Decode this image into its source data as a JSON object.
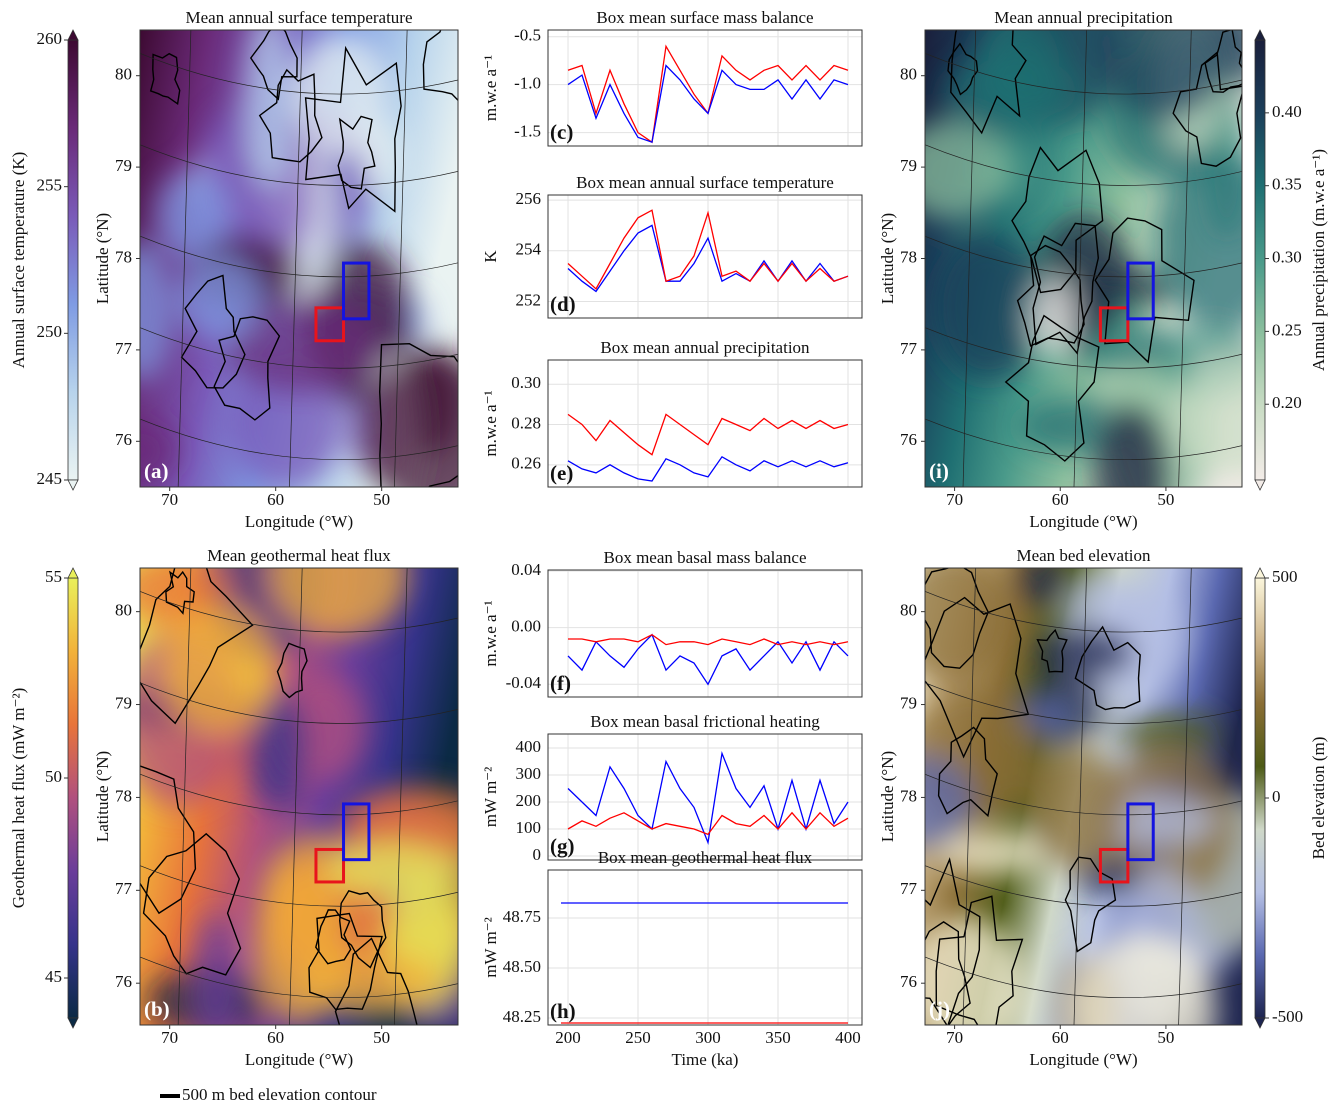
{
  "chart_data": [
    {
      "type": "map",
      "title": "Mean annual surface temperature",
      "panel_label": "(a)",
      "xlabel": "Longitude (°W)",
      "ylabel": "Latitude (°N)",
      "xlim": [
        72.8,
        42.8
      ],
      "xticks": [
        70,
        60,
        50
      ],
      "ylim": [
        75.5,
        80.5
      ],
      "yticks": [
        76,
        77,
        78,
        79,
        80
      ],
      "colorbar_label": "Annual surface temperature (K)",
      "clim": [
        245,
        260
      ],
      "cticks": [
        245,
        250,
        255,
        260
      ],
      "colormap": [
        "#eaf3f2",
        "#b7d3ec",
        "#7f9be3",
        "#7a5ab8",
        "#6a2a78",
        "#3d0a32"
      ],
      "boxes": [
        {
          "color": "#e8141c",
          "lon": [
            56.2,
            53.6
          ],
          "lat": [
            77.1,
            77.46
          ]
        },
        {
          "color": "#1414e0",
          "lon": [
            53.6,
            51.2
          ],
          "lat": [
            77.34,
            77.95
          ]
        }
      ]
    },
    {
      "type": "map",
      "title": "Mean geothermal heat flux",
      "panel_label": "(b)",
      "xlabel": "Longitude (°W)",
      "ylabel": "Latitude (°N)",
      "xlim": [
        72.8,
        42.8
      ],
      "xticks": [
        70,
        60,
        50
      ],
      "ylim": [
        75.55,
        80.47
      ],
      "yticks": [
        76,
        77,
        78,
        79,
        80
      ],
      "colorbar_label": "Geothermal heat flux (mW m⁻²)",
      "clim": [
        44,
        55
      ],
      "cticks": [
        45,
        50,
        55
      ],
      "colormap": [
        "#0b2a45",
        "#35338a",
        "#6a3d9a",
        "#b0507e",
        "#e8743a",
        "#f2b23a",
        "#e9f05a"
      ],
      "boxes": [
        {
          "color": "#e8141c",
          "lon": [
            56.2,
            53.6
          ],
          "lat": [
            77.09,
            77.44
          ]
        },
        {
          "color": "#1414e0",
          "lon": [
            53.6,
            51.2
          ],
          "lat": [
            77.33,
            77.93
          ]
        }
      ]
    },
    {
      "type": "map",
      "title": "Mean annual precipitation",
      "panel_label": "(i)",
      "xlabel": "Longitude (°W)",
      "ylabel": "Latitude (°N)",
      "xlim": [
        72.8,
        42.8
      ],
      "xticks": [
        70,
        60,
        50
      ],
      "ylim": [
        75.5,
        80.5
      ],
      "yticks": [
        76,
        77,
        78,
        79,
        80
      ],
      "colorbar_label": "Annual precipitation (m.w.e a⁻¹)",
      "clim": [
        0.148,
        0.45
      ],
      "cticks": [
        {
          "value": 0.2,
          "label": "0.20"
        },
        0.25,
        {
          "value": 0.3,
          "label": "0.30"
        },
        0.35,
        {
          "value": 0.4,
          "label": "0.40"
        }
      ],
      "colormap": [
        "#f3ece8",
        "#c9dcc4",
        "#8cbf9e",
        "#4a9a8a",
        "#1f6f72",
        "#1b3f5a",
        "#1a1f3c"
      ],
      "boxes": [
        {
          "color": "#e8141c",
          "lon": [
            56.2,
            53.6
          ],
          "lat": [
            77.1,
            77.46
          ]
        },
        {
          "color": "#1414e0",
          "lon": [
            53.6,
            51.2
          ],
          "lat": [
            77.34,
            77.95
          ]
        }
      ]
    },
    {
      "type": "map",
      "title": "Mean bed elevation",
      "panel_label": "(j)",
      "xlabel": "Longitude (°W)",
      "ylabel": "Latitude (°N)",
      "xlim": [
        72.8,
        42.8
      ],
      "xticks": [
        70,
        60,
        50
      ],
      "ylim": [
        75.55,
        80.47
      ],
      "yticks": [
        76,
        77,
        78,
        79,
        80
      ],
      "colorbar_label": "Bed elevation (m)",
      "clim": [
        -500,
        500
      ],
      "cticks": [
        -500,
        0,
        500
      ],
      "colormap": [
        "#1e2550",
        "#5a68b0",
        "#b4bfe4",
        "#cfd8c8",
        "#4d5a16",
        "#8a6e35",
        "#cdb48a",
        "#fbf6dc"
      ],
      "boxes": [
        {
          "color": "#e8141c",
          "lon": [
            56.2,
            53.6
          ],
          "lat": [
            77.09,
            77.44
          ]
        },
        {
          "color": "#1414e0",
          "lon": [
            53.6,
            51.2
          ],
          "lat": [
            77.33,
            77.93
          ]
        }
      ]
    },
    {
      "type": "line",
      "title": "Box mean surface mass balance",
      "panel_label": "(c)",
      "ylabel": "m.w.e a⁻¹",
      "show_xtick_labels": false,
      "x": [
        200,
        210,
        220,
        230,
        240,
        250,
        260,
        270,
        280,
        290,
        300,
        310,
        320,
        330,
        340,
        350,
        360,
        370,
        380,
        390,
        400
      ],
      "xlim": [
        185.7,
        410
      ],
      "xticks": [
        200,
        250,
        300,
        350,
        400
      ],
      "ylim": [
        -1.64,
        -0.43
      ],
      "yticks": [
        -1.5,
        {
          "value": -1.0,
          "label": "-1.0"
        },
        -0.5
      ],
      "series": [
        {
          "color": "#ff0000",
          "values": [
            -0.85,
            -0.8,
            -1.3,
            -0.85,
            -1.2,
            -1.5,
            -1.6,
            -0.6,
            -0.85,
            -1.1,
            -1.3,
            -0.7,
            -0.85,
            -0.95,
            -0.85,
            -0.8,
            -0.95,
            -0.8,
            -0.95,
            -0.8,
            -0.85
          ]
        },
        {
          "color": "#0000ff",
          "values": [
            -1.0,
            -0.9,
            -1.35,
            -1.0,
            -1.3,
            -1.55,
            -1.6,
            -0.8,
            -0.95,
            -1.15,
            -1.3,
            -0.85,
            -1.0,
            -1.05,
            -1.05,
            -0.95,
            -1.15,
            -0.95,
            -1.15,
            -0.95,
            -1.0
          ]
        }
      ]
    },
    {
      "type": "line",
      "title": "Box mean annual surface temperature",
      "panel_label": "(d)",
      "ylabel": "K",
      "show_xtick_labels": false,
      "x": [
        200,
        210,
        220,
        230,
        240,
        250,
        260,
        270,
        280,
        290,
        300,
        310,
        320,
        330,
        340,
        350,
        360,
        370,
        380,
        390,
        400
      ],
      "xlim": [
        185.7,
        410
      ],
      "xticks": [
        200,
        250,
        300,
        350,
        400
      ],
      "ylim": [
        251.35,
        256.2
      ],
      "yticks": [
        252,
        254,
        256
      ],
      "series": [
        {
          "color": "#0000ff",
          "values": [
            253.3,
            252.8,
            252.4,
            253.2,
            254,
            254.7,
            255,
            252.8,
            252.8,
            253.5,
            254.5,
            252.8,
            253.1,
            252.8,
            253.6,
            252.8,
            253.6,
            252.8,
            253.5,
            252.8,
            253
          ]
        },
        {
          "color": "#ff0000",
          "values": [
            253.5,
            253,
            252.5,
            253.5,
            254.5,
            255.3,
            255.6,
            252.8,
            253,
            253.8,
            255.5,
            253,
            253.2,
            252.8,
            253.5,
            252.8,
            253.5,
            252.8,
            253.3,
            252.8,
            253
          ]
        }
      ]
    },
    {
      "type": "line",
      "title": "Box mean annual precipitation",
      "panel_label": "(e)",
      "ylabel": "m.w.e a⁻¹",
      "show_xtick_labels": false,
      "x": [
        200,
        210,
        220,
        230,
        240,
        250,
        260,
        270,
        280,
        290,
        300,
        310,
        320,
        330,
        340,
        350,
        360,
        370,
        380,
        390,
        400
      ],
      "xlim": [
        185.7,
        410
      ],
      "xticks": [
        200,
        250,
        300,
        350,
        400
      ],
      "ylim": [
        0.249,
        0.312
      ],
      "yticks": [
        0.26,
        0.28,
        {
          "value": 0.3,
          "label": "0.30"
        }
      ],
      "series": [
        {
          "color": "#ff0000",
          "values": [
            0.285,
            0.28,
            0.272,
            0.282,
            0.276,
            0.27,
            0.265,
            0.285,
            0.28,
            0.275,
            0.27,
            0.283,
            0.28,
            0.277,
            0.283,
            0.278,
            0.282,
            0.278,
            0.282,
            0.278,
            0.28
          ]
        },
        {
          "color": "#0000ff",
          "values": [
            0.262,
            0.258,
            0.256,
            0.26,
            0.256,
            0.253,
            0.252,
            0.263,
            0.26,
            0.256,
            0.254,
            0.264,
            0.26,
            0.257,
            0.262,
            0.259,
            0.262,
            0.259,
            0.262,
            0.259,
            0.261
          ]
        }
      ]
    },
    {
      "type": "line",
      "title": "Box mean basal mass balance",
      "panel_label": "(f)",
      "ylabel": "m.w.e a⁻¹",
      "show_xtick_labels": false,
      "x": [
        200,
        210,
        220,
        230,
        240,
        250,
        260,
        270,
        280,
        290,
        300,
        310,
        320,
        330,
        340,
        350,
        360,
        370,
        380,
        390,
        400
      ],
      "xlim": [
        185.7,
        410
      ],
      "xticks": [
        200,
        250,
        300,
        350,
        400
      ],
      "ylim": [
        -0.049,
        0.0407
      ],
      "yticks": [
        -0.04,
        {
          "value": 0,
          "label": "0.00"
        },
        0.04
      ],
      "series": [
        {
          "color": "#0000ff",
          "values": [
            -0.02,
            -0.03,
            -0.01,
            -0.02,
            -0.028,
            -0.015,
            -0.005,
            -0.03,
            -0.02,
            -0.025,
            -0.04,
            -0.02,
            -0.015,
            -0.03,
            -0.02,
            -0.01,
            -0.025,
            -0.01,
            -0.03,
            -0.01,
            -0.02
          ]
        },
        {
          "color": "#ff0000",
          "values": [
            -0.008,
            -0.008,
            -0.01,
            -0.008,
            -0.008,
            -0.01,
            -0.005,
            -0.012,
            -0.01,
            -0.01,
            -0.012,
            -0.008,
            -0.01,
            -0.012,
            -0.008,
            -0.012,
            -0.01,
            -0.012,
            -0.01,
            -0.012,
            -0.01
          ]
        }
      ]
    },
    {
      "type": "line",
      "title": "Box mean basal frictional heating",
      "panel_label": "(g)",
      "ylabel": "mW m⁻²",
      "show_xtick_labels": false,
      "x": [
        200,
        210,
        220,
        230,
        240,
        250,
        260,
        270,
        280,
        290,
        300,
        310,
        320,
        330,
        340,
        350,
        360,
        370,
        380,
        390,
        400
      ],
      "xlim": [
        185.7,
        410
      ],
      "xticks": [
        200,
        250,
        300,
        350,
        400
      ],
      "ylim": [
        -15,
        452
      ],
      "yticks": [
        0,
        100,
        200,
        300,
        400
      ],
      "series": [
        {
          "color": "#0000ff",
          "values": [
            250,
            200,
            150,
            330,
            250,
            150,
            100,
            350,
            250,
            180,
            50,
            380,
            250,
            180,
            260,
            100,
            280,
            100,
            280,
            120,
            200
          ]
        },
        {
          "color": "#ff0000",
          "values": [
            100,
            130,
            110,
            140,
            160,
            130,
            100,
            120,
            110,
            100,
            80,
            150,
            120,
            110,
            150,
            100,
            160,
            100,
            160,
            110,
            140
          ]
        }
      ]
    },
    {
      "type": "line",
      "title": "Box mean geothermal heat flux",
      "panel_label": "(h)",
      "ylabel": "mW m⁻²",
      "xlabel": "Time (ka)",
      "show_xtick_labels": true,
      "x": [
        195,
        400
      ],
      "xlim": [
        185.7,
        410
      ],
      "xticks": [
        200,
        250,
        300,
        350,
        400
      ],
      "ylim": [
        48.215,
        48.99
      ],
      "yticks": [
        48.25,
        {
          "value": 48.5,
          "label": "48.50"
        },
        48.75
      ],
      "series": [
        {
          "color": "#0000ff",
          "values": [
            48.825,
            48.825
          ]
        },
        {
          "color": "#ff0000",
          "values": [
            48.225,
            48.225
          ]
        }
      ]
    }
  ],
  "figure_legend": {
    "label": "500 m bed elevation contour"
  }
}
